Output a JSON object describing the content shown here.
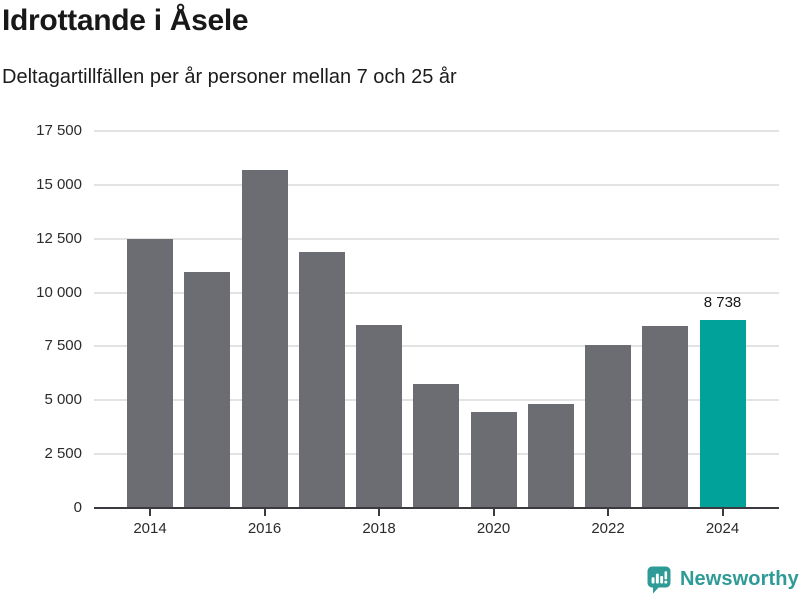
{
  "header": {
    "title": "Idrottande i Åsele",
    "subtitle": "Deltagartillfällen per år personer mellan 7 och 25 år"
  },
  "chart_data": {
    "type": "bar",
    "title": "Idrottande i Åsele",
    "subtitle": "Deltagartillfällen per år personer mellan 7 och 25 år",
    "categories": [
      "2014",
      "2015",
      "2016",
      "2017",
      "2018",
      "2019",
      "2020",
      "2021",
      "2022",
      "2023",
      "2024"
    ],
    "values": [
      12500,
      10950,
      15700,
      11900,
      8500,
      5750,
      4450,
      4850,
      7550,
      8450,
      8738
    ],
    "bar_color": "#6c6c73",
    "highlight": {
      "index": 10,
      "label": "8 738",
      "color": "#00a29a"
    },
    "ylim": [
      0,
      17500
    ],
    "yticks": [
      0,
      2500,
      5000,
      7500,
      10000,
      12500,
      15000,
      17500
    ],
    "ytick_labels": [
      "0",
      "2 500",
      "5 000",
      "7 500",
      "10 000",
      "12 500",
      "15 000",
      "17 500"
    ],
    "xtick_indices": [
      0,
      2,
      4,
      6,
      8,
      10
    ],
    "xtick_labels": [
      "2014",
      "2016",
      "2018",
      "2020",
      "2022",
      "2024"
    ],
    "xlabel": "",
    "ylabel": "",
    "grid": "horizontal",
    "legend_position": "none",
    "grid_color": "#e3e3e3",
    "axis_color": "#3b3b3f",
    "label_color": "#2b2b2b"
  },
  "footer": {
    "brand": "Newsworthy",
    "brand_color": "#2f9b96",
    "icon": "newsworthy-bars-bubble-icon"
  }
}
